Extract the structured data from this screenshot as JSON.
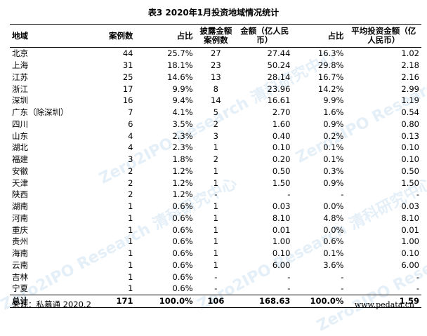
{
  "title": "表3 2020年1月投资地域情况统计",
  "headers": {
    "region": "地域",
    "cases": "案例数",
    "case_share": "占比",
    "disclosed_cases": "披露金额案例数",
    "amount": "金额（亿人民币）",
    "amount_share": "占比",
    "avg_amount": "平均投资金额（亿人民币）"
  },
  "rows": [
    {
      "region": "北京",
      "cases": "44",
      "case_share": "25.7%",
      "disclosed": "27",
      "amount": "27.44",
      "amount_share": "16.3%",
      "avg": "1.02"
    },
    {
      "region": "上海",
      "cases": "31",
      "case_share": "18.1%",
      "disclosed": "23",
      "amount": "50.24",
      "amount_share": "29.8%",
      "avg": "2.18"
    },
    {
      "region": "江苏",
      "cases": "25",
      "case_share": "14.6%",
      "disclosed": "13",
      "amount": "28.14",
      "amount_share": "16.7%",
      "avg": "2.16"
    },
    {
      "region": "浙江",
      "cases": "17",
      "case_share": "9.9%",
      "disclosed": "8",
      "amount": "23.96",
      "amount_share": "14.2%",
      "avg": "2.99"
    },
    {
      "region": "深圳",
      "cases": "16",
      "case_share": "9.4%",
      "disclosed": "14",
      "amount": "16.61",
      "amount_share": "9.9%",
      "avg": "1.19"
    },
    {
      "region": "广东（除深圳）",
      "cases": "7",
      "case_share": "4.1%",
      "disclosed": "5",
      "amount": "2.70",
      "amount_share": "1.6%",
      "avg": "0.54"
    },
    {
      "region": "四川",
      "cases": "6",
      "case_share": "3.5%",
      "disclosed": "2",
      "amount": "1.60",
      "amount_share": "0.9%",
      "avg": "0.80"
    },
    {
      "region": "山东",
      "cases": "4",
      "case_share": "2.3%",
      "disclosed": "3",
      "amount": "0.40",
      "amount_share": "0.2%",
      "avg": "0.13"
    },
    {
      "region": "湖北",
      "cases": "4",
      "case_share": "2.3%",
      "disclosed": "1",
      "amount": "0.10",
      "amount_share": "0.1%",
      "avg": "0.10"
    },
    {
      "region": "福建",
      "cases": "3",
      "case_share": "1.8%",
      "disclosed": "2",
      "amount": "0.20",
      "amount_share": "0.1%",
      "avg": "0.10"
    },
    {
      "region": "安徽",
      "cases": "2",
      "case_share": "1.2%",
      "disclosed": "1",
      "amount": "0.50",
      "amount_share": "0.3%",
      "avg": "0.50"
    },
    {
      "region": "天津",
      "cases": "2",
      "case_share": "1.2%",
      "disclosed": "1",
      "amount": "1.50",
      "amount_share": "0.9%",
      "avg": "1.50"
    },
    {
      "region": "陕西",
      "cases": "2",
      "case_share": "1.2%",
      "disclosed": "-",
      "amount": "-",
      "amount_share": "-",
      "avg": "-"
    },
    {
      "region": "湖南",
      "cases": "1",
      "case_share": "0.6%",
      "disclosed": "1",
      "amount": "0.03",
      "amount_share": "0.0%",
      "avg": "0.03"
    },
    {
      "region": "河南",
      "cases": "1",
      "case_share": "0.6%",
      "disclosed": "1",
      "amount": "8.10",
      "amount_share": "4.8%",
      "avg": "8.10"
    },
    {
      "region": "重庆",
      "cases": "1",
      "case_share": "0.6%",
      "disclosed": "1",
      "amount": "0.01",
      "amount_share": "0.0%",
      "avg": "0.01"
    },
    {
      "region": "贵州",
      "cases": "1",
      "case_share": "0.6%",
      "disclosed": "1",
      "amount": "1.00",
      "amount_share": "0.6%",
      "avg": "1.00"
    },
    {
      "region": "海南",
      "cases": "1",
      "case_share": "0.6%",
      "disclosed": "1",
      "amount": "0.10",
      "amount_share": "0.1%",
      "avg": "0.10"
    },
    {
      "region": "云南",
      "cases": "1",
      "case_share": "0.6%",
      "disclosed": "1",
      "amount": "6.00",
      "amount_share": "3.6%",
      "avg": "6.00"
    },
    {
      "region": "吉林",
      "cases": "1",
      "case_share": "0.6%",
      "disclosed": "-",
      "amount": "-",
      "amount_share": "-",
      "avg": "-"
    },
    {
      "region": "宁夏",
      "cases": "1",
      "case_share": "0.6%",
      "disclosed": "-",
      "amount": "-",
      "amount_share": "-",
      "avg": "-"
    }
  ],
  "total": {
    "region": "总计",
    "cases": "171",
    "case_share": "100.0%",
    "disclosed": "106",
    "amount": "168.63",
    "amount_share": "100.0%",
    "avg": "1.59"
  },
  "source": "来源：私募通 2020.2",
  "website": "www.pedata.cn",
  "watermark": "Zero2IPO Research 清科研究中心"
}
